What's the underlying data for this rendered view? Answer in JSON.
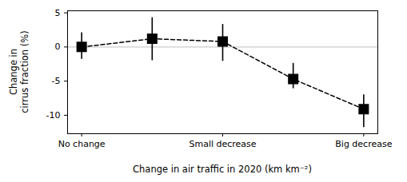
{
  "chart_data": {
    "type": "line",
    "x_label": "Change in air traffic in 2020 (km km⁻²)",
    "y_label": "Change in\ncirrus fraction (%)",
    "x": [
      0,
      1,
      2,
      3,
      4
    ],
    "values": [
      0,
      1.2,
      0.8,
      -4.7,
      -9.1
    ],
    "y_lower": [
      -1.8,
      -2.0,
      -2.1,
      -6.1,
      -11.8
    ],
    "y_upper": [
      2.1,
      4.3,
      3.3,
      -2.4,
      -7.0
    ],
    "color": "#000000",
    "marker": "square",
    "line_style": "dashed",
    "reference_line": 0,
    "xlim": [
      -0.2,
      4.2
    ],
    "xticks": [
      {
        "value": 0,
        "label": "No change"
      },
      {
        "value": 2,
        "label": "Small decrease"
      },
      {
        "value": 4,
        "label": "Big decrease"
      }
    ],
    "ylim": [
      -12.7,
      5.3
    ],
    "yticks": [
      -10,
      -5,
      0,
      5
    ],
    "grid": false
  }
}
